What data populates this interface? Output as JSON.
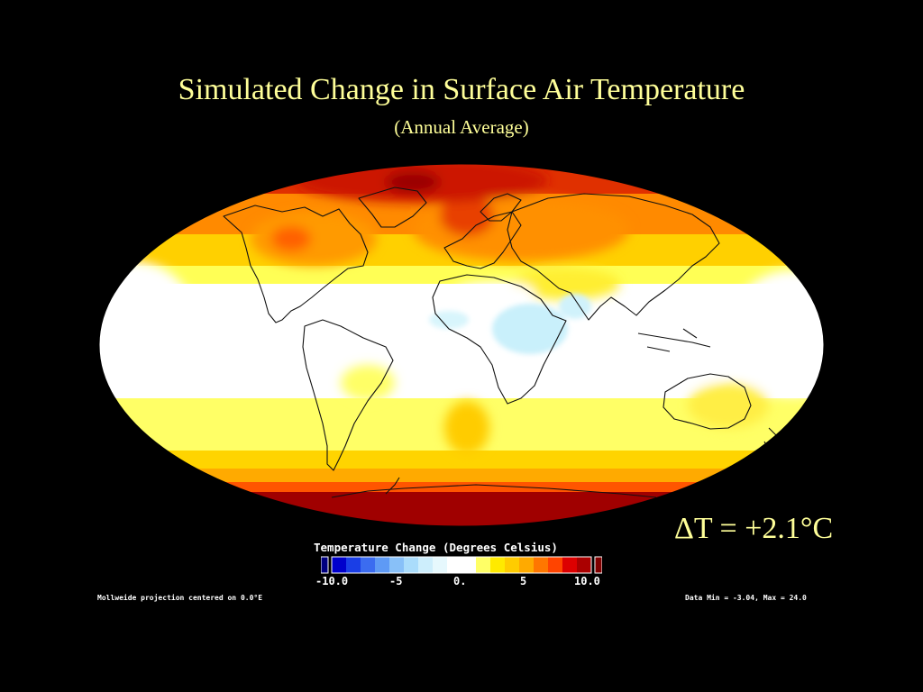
{
  "slide": {
    "title": "Simulated Change in Surface Air Temperature",
    "subtitle": "(Annual Average)",
    "delta_t": "ΔT = +2.1°C"
  },
  "map": {
    "projection": "Mollweide",
    "center_longitude": 0.0
  },
  "legend": {
    "title": "Temperature Change (Degrees Celsius)",
    "ticks": [
      "-10.0",
      "-5",
      "0.",
      "5",
      "10.0"
    ],
    "colors": [
      "#0000cc",
      "#1a3ee6",
      "#3b6cf0",
      "#5e9af5",
      "#88c0f8",
      "#aadcfb",
      "#cdeefc",
      "#e6f8fd",
      "#ffffff",
      "#ffffff",
      "#ffff66",
      "#ffea00",
      "#ffcc00",
      "#ffaa00",
      "#ff7700",
      "#ff4400",
      "#dd0000",
      "#aa0000"
    ],
    "under_color": "#000080",
    "over_color": "#800000"
  },
  "footer": {
    "projection_note": "Mollweide projection centered on 0.0°E",
    "data_range": "Data Min = -3.04, Max = 24.0"
  },
  "colors": {
    "title_text": "#ffff99",
    "background": "#000000"
  }
}
